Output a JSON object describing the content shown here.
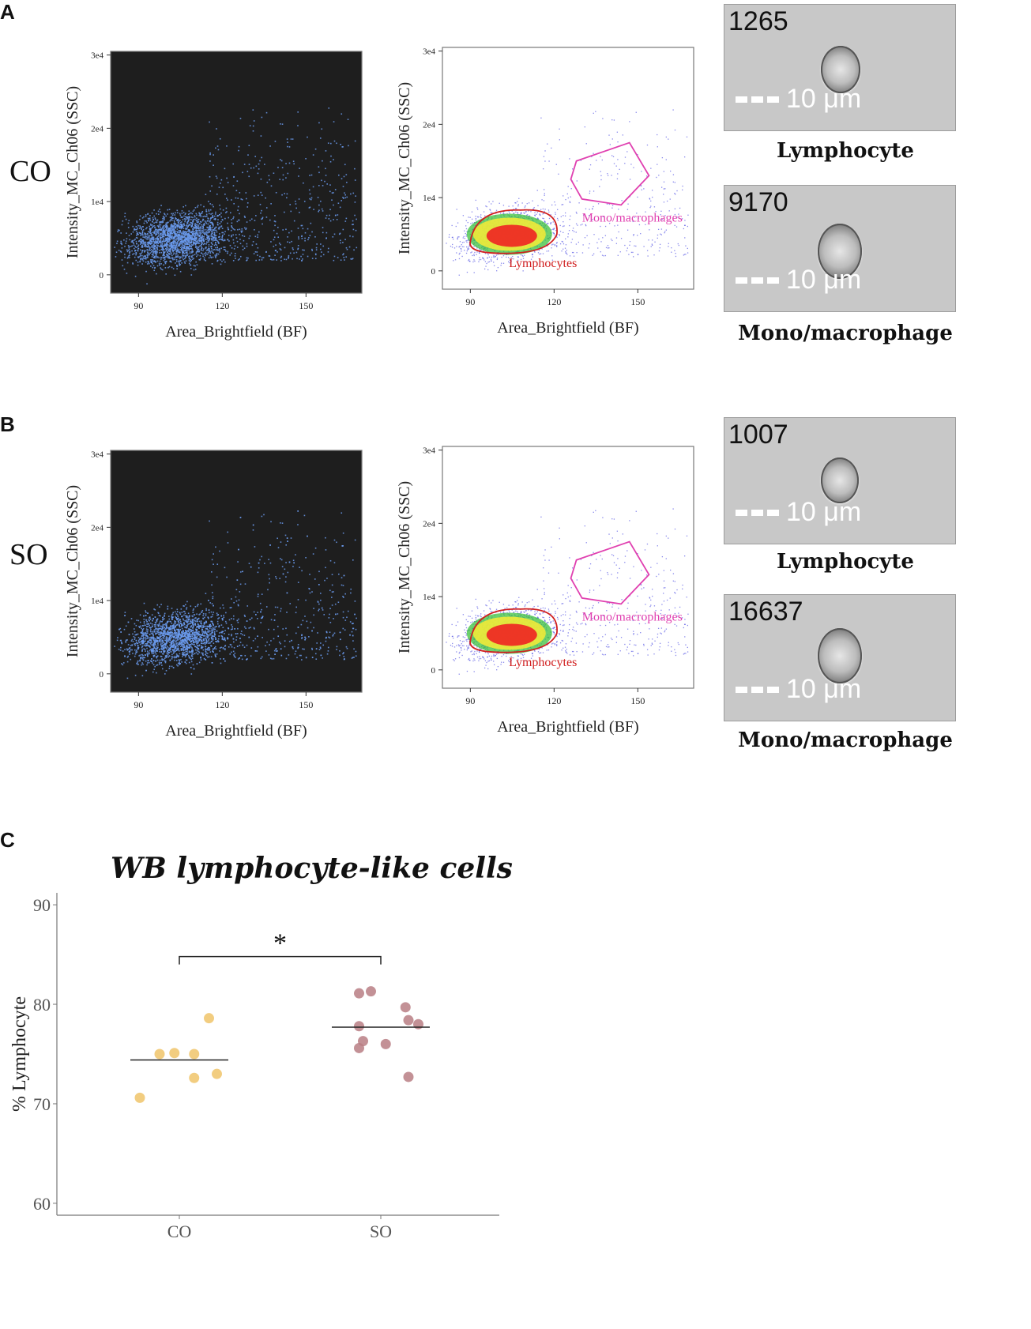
{
  "panels": {
    "A": {
      "letter": "A",
      "group": "CO",
      "plot1": {
        "ylabel": "Intensity_MC_Ch06 (SSC)",
        "xlabel": "Area_Brightfield (BF)",
        "yticks": [
          "0",
          "1e4",
          "2e4",
          "3e4"
        ],
        "xticks": [
          "90",
          "120",
          "150"
        ]
      },
      "plot2": {
        "ylabel": "Intensity_MC_Ch06 (SSC)",
        "xlabel": "Area_Brightfield (BF)",
        "yticks": [
          "0",
          "1e4",
          "2e4",
          "3e4"
        ],
        "xticks": [
          "90",
          "120",
          "150"
        ],
        "gate_lymph": "Lymphocytes",
        "gate_mono": "Mono/macrophages"
      },
      "cells": [
        {
          "id": "1265",
          "scale": "10 μm",
          "caption": "Lymphocyte"
        },
        {
          "id": "9170",
          "scale": "10 μm",
          "caption": "Mono/macrophage"
        }
      ]
    },
    "B": {
      "letter": "B",
      "group": "SO",
      "plot1": {
        "ylabel": "Intensity_MC_Ch06 (SSC)",
        "xlabel": "Area_Brightfield (BF)",
        "yticks": [
          "0",
          "1e4",
          "2e4",
          "3e4"
        ],
        "xticks": [
          "90",
          "120",
          "150"
        ]
      },
      "plot2": {
        "ylabel": "Intensity_MC_Ch06 (SSC)",
        "xlabel": "Area_Brightfield (BF)",
        "yticks": [
          "0",
          "1e4",
          "2e4",
          "3e4"
        ],
        "xticks": [
          "90",
          "120",
          "150"
        ],
        "gate_lymph": "Lymphocytes",
        "gate_mono": "Mono/macrophages"
      },
      "cells": [
        {
          "id": "1007",
          "scale": "10 μm",
          "caption": "Lymphocyte"
        },
        {
          "id": "16637",
          "scale": "10 μm",
          "caption": "Mono/macrophage"
        }
      ]
    },
    "C": {
      "letter": "C"
    }
  },
  "colors": {
    "dot_blue": "#6b9bef",
    "dark_bg": "#1e1e1e",
    "gate_pink": "#e040b0",
    "gate_red": "#d12020",
    "co_dot": "#f0c46a",
    "so_dot": "#b87e84"
  },
  "chart_data": {
    "type": "scatter",
    "title": "WB lymphocyte-like cells",
    "xlabel": "",
    "ylabel": "% Lymphocyte",
    "ylim": [
      60,
      90
    ],
    "yticks": [
      60,
      70,
      80,
      90
    ],
    "categories": [
      "CO",
      "SO"
    ],
    "series": [
      {
        "name": "CO",
        "points": [
          {
            "x": -0.4,
            "y": 70.6
          },
          {
            "x": -0.2,
            "y": 75.0
          },
          {
            "x": -0.05,
            "y": 75.1
          },
          {
            "x": 0.15,
            "y": 75.0
          },
          {
            "x": 0.15,
            "y": 72.6
          },
          {
            "x": 0.3,
            "y": 78.6
          },
          {
            "x": 0.38,
            "y": 73.0
          }
        ],
        "mean": 74.4
      },
      {
        "name": "SO",
        "points": [
          {
            "x": -0.22,
            "y": 81.1
          },
          {
            "x": -0.1,
            "y": 81.3
          },
          {
            "x": -0.22,
            "y": 77.8
          },
          {
            "x": -0.18,
            "y": 76.3
          },
          {
            "x": -0.22,
            "y": 75.6
          },
          {
            "x": 0.05,
            "y": 76.0
          },
          {
            "x": 0.25,
            "y": 79.7
          },
          {
            "x": 0.28,
            "y": 78.4
          },
          {
            "x": 0.38,
            "y": 78.0
          },
          {
            "x": 0.28,
            "y": 72.7
          }
        ],
        "mean": 77.7
      }
    ],
    "significance": "*",
    "grid": false
  }
}
